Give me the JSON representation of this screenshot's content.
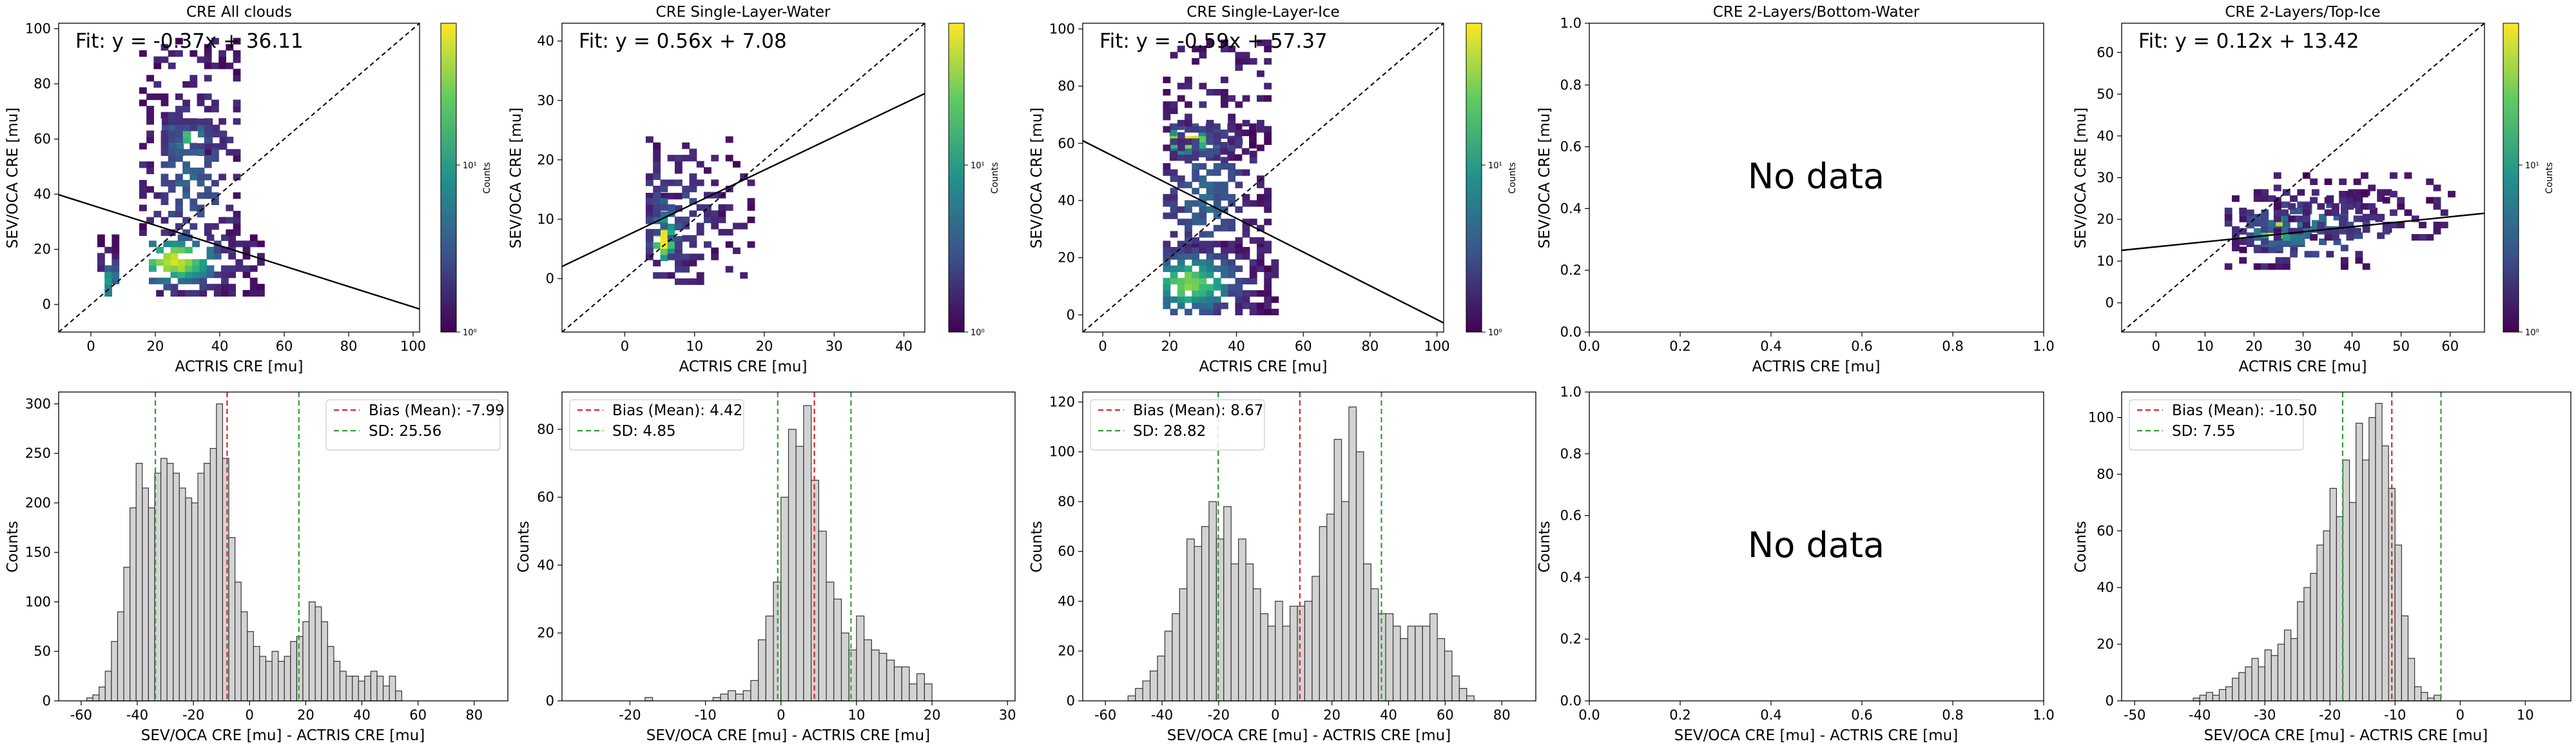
{
  "figure": {
    "rows": 2,
    "cols": 5,
    "colors": {
      "fit_line": "#000000",
      "identity_line": "#000000",
      "bias_line": "#d62728",
      "sd_line": "#2ca02c",
      "hist_fill": "#d3d3d3",
      "hist_edge": "#333333",
      "colormap": "viridis"
    }
  },
  "chart_data": [
    {
      "id": "a",
      "type": "heatmap",
      "title": "CRE All clouds",
      "xlabel": "ACTRIS CRE [mu]",
      "ylabel": "SEV/OCA CRE [mu]",
      "xlim": [
        -10,
        102
      ],
      "ylim": [
        -10,
        102
      ],
      "xticks": [
        0,
        20,
        40,
        60,
        80,
        100
      ],
      "yticks": [
        0,
        20,
        40,
        60,
        80,
        100
      ],
      "fit_text": "Fit: y = -0.37x + 36.11",
      "fit": {
        "slope": -0.37,
        "intercept": 36.11
      },
      "identity_line": true,
      "colorbar": {
        "label": "Counts",
        "scale": "log",
        "ticks": [
          "10⁰",
          "10¹"
        ]
      },
      "density_clusters": [
        {
          "x": [
            18,
            52
          ],
          "y": [
            3,
            25
          ],
          "peak": [
            25,
            15
          ],
          "level": 0.92
        },
        {
          "x": [
            22,
            42
          ],
          "y": [
            54,
            66
          ],
          "peak": [
            28,
            60
          ],
          "level": 0.7
        },
        {
          "x": [
            15,
            45
          ],
          "y": [
            25,
            95
          ],
          "peak": [
            30,
            45
          ],
          "level": 0.25
        },
        {
          "x": [
            2,
            8
          ],
          "y": [
            3,
            25
          ],
          "peak": [
            5,
            7
          ],
          "level": 0.5
        }
      ]
    },
    {
      "id": "b",
      "type": "heatmap",
      "title": "CRE Single-Layer-Water",
      "xlabel": "ACTRIS CRE [mu]",
      "ylabel": "SEV/OCA CRE [mu]",
      "xlim": [
        -9,
        43
      ],
      "ylim": [
        -9,
        43
      ],
      "xticks": [
        0,
        10,
        20,
        30,
        40
      ],
      "yticks": [
        0,
        10,
        20,
        30,
        40
      ],
      "fit_text": "Fit: y = 0.56x + 7.08",
      "fit": {
        "slope": 0.56,
        "intercept": 7.08
      },
      "identity_line": true,
      "colorbar": {
        "label": "Counts",
        "scale": "log",
        "ticks": [
          "10⁰",
          "10¹"
        ]
      },
      "density_clusters": [
        {
          "x": [
            3,
            8
          ],
          "y": [
            3,
            14
          ],
          "peak": [
            5,
            6
          ],
          "level": 0.95
        },
        {
          "x": [
            3,
            18
          ],
          "y": [
            -1,
            23
          ],
          "peak": [
            6,
            10
          ],
          "level": 0.2
        }
      ]
    },
    {
      "id": "c",
      "type": "heatmap",
      "title": "CRE Single-Layer-Ice",
      "xlabel": "ACTRIS CRE [mu]",
      "ylabel": "SEV/OCA CRE [mu]",
      "xlim": [
        -6,
        102
      ],
      "ylim": [
        -6,
        102
      ],
      "xticks": [
        0,
        20,
        40,
        60,
        80,
        100
      ],
      "yticks": [
        0,
        20,
        40,
        60,
        80,
        100
      ],
      "fit_text": "Fit: y = -0.59x + 57.37",
      "fit": {
        "slope": -0.59,
        "intercept": 57.37
      },
      "identity_line": true,
      "colorbar": {
        "label": "Counts",
        "scale": "log",
        "ticks": [
          "10⁰",
          "10¹"
        ]
      },
      "density_clusters": [
        {
          "x": [
            18,
            52
          ],
          "y": [
            0,
            25
          ],
          "peak": [
            25,
            10
          ],
          "level": 0.75
        },
        {
          "x": [
            20,
            45
          ],
          "y": [
            54,
            66
          ],
          "peak": [
            24,
            60
          ],
          "level": 0.95
        },
        {
          "x": [
            18,
            50
          ],
          "y": [
            25,
            95
          ],
          "peak": [
            30,
            40
          ],
          "level": 0.25
        }
      ]
    },
    {
      "id": "d",
      "type": "empty",
      "title": "CRE 2-Layers/Bottom-Water",
      "xlabel": "ACTRIS CRE [mu]",
      "ylabel": "SEV/OCA CRE [mu]",
      "xlim": [
        0,
        1
      ],
      "ylim": [
        0,
        1
      ],
      "xticks": [
        "0.0",
        "0.2",
        "0.4",
        "0.6",
        "0.8",
        "1.0"
      ],
      "yticks": [
        "0.0",
        "0.2",
        "0.4",
        "0.6",
        "0.8",
        "1.0"
      ],
      "message": "No data"
    },
    {
      "id": "e",
      "type": "heatmap",
      "title": "CRE 2-Layers/Top-Ice",
      "xlabel": "ACTRIS CRE [mu]",
      "ylabel": "SEV/OCA CRE [mu]",
      "xlim": [
        -7,
        67
      ],
      "ylim": [
        -7,
        67
      ],
      "xticks": [
        0,
        10,
        20,
        30,
        40,
        50,
        60
      ],
      "yticks": [
        0,
        10,
        20,
        30,
        40,
        50,
        60
      ],
      "fit_text": "Fit: y = 0.12x + 13.42",
      "fit": {
        "slope": 0.12,
        "intercept": 13.42
      },
      "identity_line": true,
      "colorbar": {
        "label": "Counts",
        "scale": "log",
        "ticks": [
          "10⁰",
          "10¹"
        ]
      },
      "density_clusters": [
        {
          "x": [
            17,
            30
          ],
          "y": [
            12,
            22
          ],
          "peak": [
            24,
            17
          ],
          "level": 0.95
        },
        {
          "x": [
            14,
            48
          ],
          "y": [
            8,
            26
          ],
          "peak": [
            30,
            17
          ],
          "level": 0.35
        },
        {
          "x": [
            24,
            60
          ],
          "y": [
            15,
            30
          ],
          "peak": [
            40,
            18
          ],
          "level": 0.12
        }
      ]
    },
    {
      "id": "f",
      "type": "bar",
      "xlabel": "SEV/OCA CRE [mu] - ACTRIS CRE [mu]",
      "ylabel": "Counts",
      "xlim": [
        -68,
        92
      ],
      "ylim": [
        0,
        312
      ],
      "xticks": [
        -60,
        -40,
        -20,
        0,
        20,
        40,
        60,
        80
      ],
      "yticks": [
        0,
        50,
        100,
        150,
        200,
        250,
        300
      ],
      "bin_start": -58,
      "bin_width": 2.2,
      "counts": [
        3,
        6,
        14,
        30,
        60,
        90,
        135,
        195,
        240,
        215,
        195,
        230,
        245,
        240,
        230,
        215,
        205,
        200,
        230,
        240,
        255,
        300,
        245,
        165,
        120,
        90,
        70,
        55,
        45,
        40,
        50,
        40,
        45,
        60,
        65,
        80,
        100,
        95,
        80,
        55,
        40,
        30,
        25,
        25,
        20,
        25,
        30,
        25,
        15,
        25,
        10
      ],
      "bias": -7.99,
      "sd": 25.56,
      "legend": [
        "Bias (Mean): -7.99",
        "SD: 25.56"
      ]
    },
    {
      "id": "g",
      "type": "bar",
      "xlabel": "SEV/OCA CRE [mu] - ACTRIS CRE [mu]",
      "ylabel": "Counts",
      "xlim": [
        -29,
        31
      ],
      "ylim": [
        0,
        91
      ],
      "xticks": [
        -20,
        -10,
        0,
        10,
        20,
        30
      ],
      "yticks": [
        0,
        20,
        40,
        60,
        80
      ],
      "bin_start": -24,
      "bin_width": 1.0,
      "counts": [
        0,
        0,
        0,
        0,
        0,
        0,
        1,
        0,
        0,
        0,
        0,
        0,
        0,
        0,
        0,
        1,
        2,
        3,
        2,
        3,
        6,
        18,
        25,
        35,
        60,
        80,
        75,
        87,
        65,
        50,
        35,
        30,
        20,
        15,
        25,
        18,
        15,
        14,
        12,
        10,
        10,
        5,
        8,
        5
      ],
      "bias": 4.42,
      "sd": 4.85,
      "legend": [
        "Bias (Mean): 4.42",
        "SD: 4.85"
      ]
    },
    {
      "id": "h",
      "type": "bar",
      "xlabel": "SEV/OCA CRE [mu] - ACTRIS CRE [mu]",
      "ylabel": "Counts",
      "xlim": [
        -68,
        92
      ],
      "ylim": [
        0,
        124
      ],
      "xticks": [
        -60,
        -40,
        -20,
        0,
        20,
        40,
        60,
        80
      ],
      "yticks": [
        0,
        20,
        40,
        60,
        80,
        100,
        120
      ],
      "bin_start": -52,
      "bin_width": 2.6,
      "counts": [
        2,
        5,
        8,
        12,
        18,
        28,
        35,
        45,
        65,
        62,
        70,
        80,
        65,
        78,
        55,
        65,
        55,
        45,
        35,
        30,
        40,
        30,
        38,
        38,
        40,
        50,
        70,
        75,
        105,
        80,
        118,
        100,
        55,
        45,
        35,
        35,
        30,
        25,
        30,
        30,
        30,
        35,
        25,
        20,
        10,
        5,
        2
      ],
      "bias": 8.67,
      "sd": 28.82,
      "legend": [
        "Bias (Mean): 8.67",
        "SD: 28.82"
      ]
    },
    {
      "id": "i",
      "type": "empty",
      "xlabel": "SEV/OCA CRE [mu] - ACTRIS CRE [mu]",
      "ylabel": "Counts",
      "xlim": [
        0,
        1
      ],
      "ylim": [
        0,
        1
      ],
      "xticks": [
        "0.0",
        "0.2",
        "0.4",
        "0.6",
        "0.8",
        "1.0"
      ],
      "yticks": [
        "0.0",
        "0.2",
        "0.4",
        "0.6",
        "0.8",
        "1.0"
      ],
      "message": "No data"
    },
    {
      "id": "j",
      "type": "bar",
      "xlabel": "SEV/OCA CRE [mu] - ACTRIS CRE [mu]",
      "ylabel": "Counts",
      "xlim": [
        -52,
        17
      ],
      "ylim": [
        0,
        109
      ],
      "xticks": [
        -50,
        -40,
        -30,
        -20,
        -10,
        0,
        10
      ],
      "yticks": [
        0,
        20,
        40,
        60,
        80,
        100
      ],
      "bin_start": -41,
      "bin_width": 1.0,
      "counts": [
        1,
        2,
        3,
        2,
        4,
        5,
        8,
        10,
        12,
        15,
        12,
        18,
        16,
        20,
        25,
        22,
        35,
        40,
        45,
        55,
        60,
        75,
        65,
        85,
        70,
        98,
        85,
        100,
        105,
        90,
        75,
        55,
        30,
        15,
        5,
        3,
        1,
        2
      ],
      "bias": -10.5,
      "sd": 7.55,
      "legend": [
        "Bias (Mean): -10.50",
        "SD: 7.55"
      ]
    }
  ]
}
